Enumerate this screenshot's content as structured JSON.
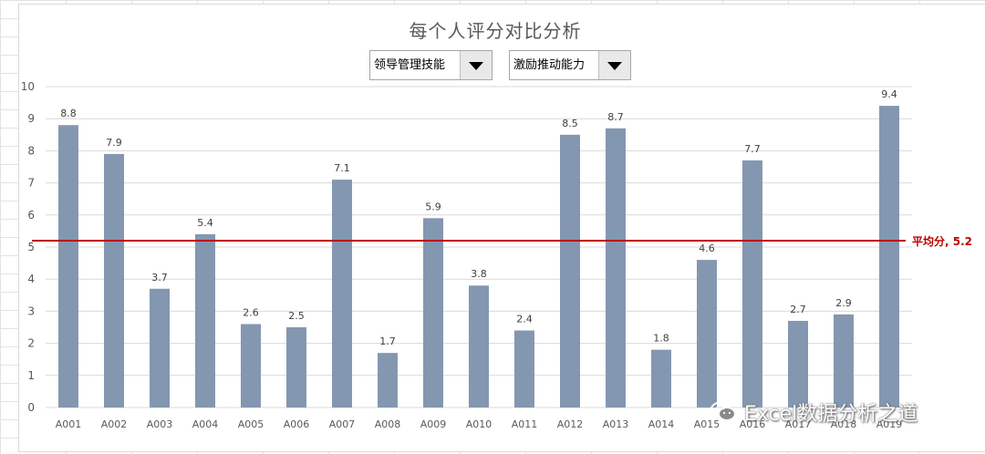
{
  "colors": {
    "bar": "#8497b0",
    "avg_line": "#c00000",
    "avg_label": "#c00000",
    "grid": "#d9d9d9",
    "axis_text": "#595959"
  },
  "dropdowns": [
    {
      "label": "领导管理技能"
    },
    {
      "label": "激励推动能力"
    }
  ],
  "watermark": {
    "text": "Excel数据分析之道",
    "icon": "wechat-icon"
  },
  "chart_data": {
    "type": "bar",
    "title": "每个人评分对比分析",
    "categories": [
      "A001",
      "A002",
      "A003",
      "A004",
      "A005",
      "A006",
      "A007",
      "A008",
      "A009",
      "A010",
      "A011",
      "A012",
      "A013",
      "A014",
      "A015",
      "A016",
      "A017",
      "A018",
      "A019"
    ],
    "values": [
      8.8,
      7.9,
      3.7,
      5.4,
      2.6,
      2.5,
      7.1,
      1.7,
      5.9,
      3.8,
      2.4,
      8.5,
      8.7,
      1.8,
      4.6,
      7.7,
      2.7,
      2.9,
      9.4
    ],
    "data_labels": [
      "8.8",
      "7.9",
      "3.7",
      "5.4",
      "2.6",
      "2.5",
      "7.1",
      "1.7",
      "5.9",
      "3.8",
      "2.4",
      "8.5",
      "8.7",
      "1.8",
      "4.6",
      "7.7",
      "2.7",
      "2.9",
      "9.4"
    ],
    "ylim": [
      0,
      10
    ],
    "yticks": [
      "0",
      "1",
      "2",
      "3",
      "4",
      "5",
      "6",
      "7",
      "8",
      "9",
      "10"
    ],
    "grid": true,
    "average": {
      "value": 5.2,
      "label": "平均分, 5.2"
    }
  }
}
